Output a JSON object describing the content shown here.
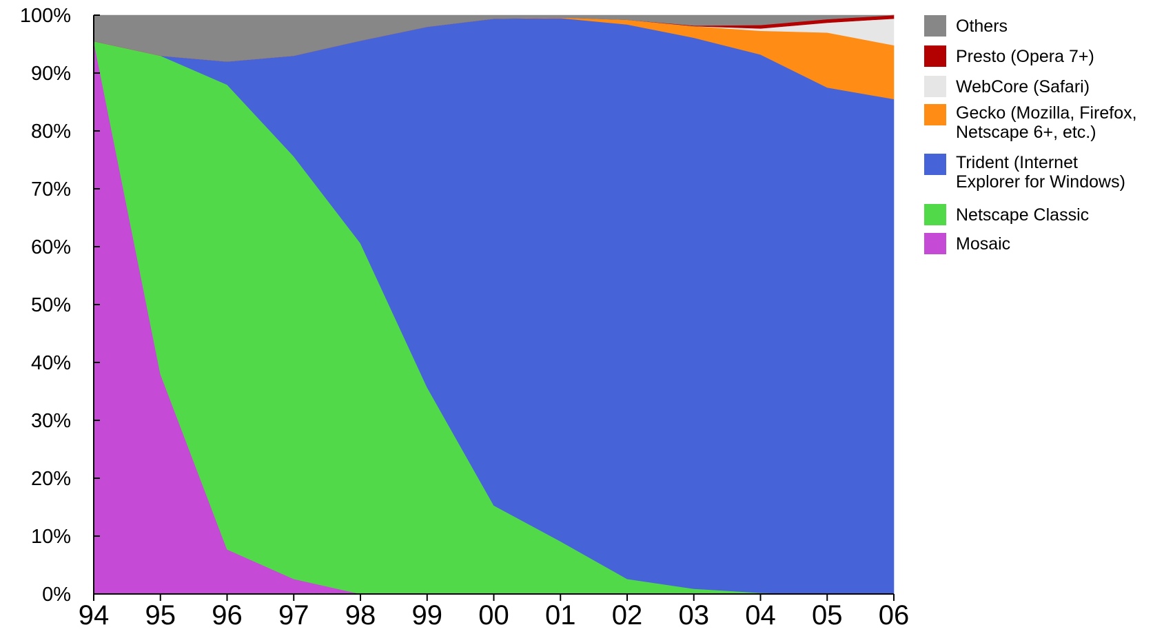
{
  "chart_data": {
    "type": "area",
    "stacked": true,
    "x": [
      "94",
      "95",
      "96",
      "97",
      "98",
      "99",
      "00",
      "01",
      "02",
      "03",
      "04",
      "05",
      "06"
    ],
    "ylim": [
      0,
      100
    ],
    "y_ticks": [
      "0%",
      "10%",
      "20%",
      "30%",
      "40%",
      "50%",
      "60%",
      "70%",
      "80%",
      "90%",
      "100%"
    ],
    "grid": false,
    "legend_position": "right",
    "series": [
      {
        "name": "Mosaic",
        "color": "#c54ad6",
        "values": [
          95.5,
          38.0,
          7.7,
          2.6,
          0.0,
          0.0,
          0.0,
          0.0,
          0.0,
          0.0,
          0.0,
          0.0,
          0.0
        ]
      },
      {
        "name": "Netscape Classic",
        "color": "#52d94a",
        "values": [
          0.0,
          55.0,
          80.3,
          73.0,
          60.6,
          35.7,
          15.3,
          9.1,
          2.6,
          0.9,
          0.2,
          0.0,
          0.0
        ]
      },
      {
        "name": "Trident (Internet Explorer for Windows)",
        "color": "#4664d8",
        "values": [
          0.0,
          0.0,
          4.0,
          17.4,
          35.0,
          62.3,
          84.1,
          90.4,
          95.8,
          95.2,
          93.0,
          87.5,
          85.5
        ]
      },
      {
        "name": "Gecko (Mozilla, Firefox, Netscape 6+, etc.)",
        "color": "#ff8c14",
        "values": [
          0.0,
          0.0,
          0.0,
          0.0,
          0.0,
          0.0,
          0.0,
          0.1,
          0.8,
          2.0,
          4.1,
          9.5,
          9.3
        ]
      },
      {
        "name": "WebCore (Safari)",
        "color": "#e6e6e6",
        "values": [
          0.0,
          0.0,
          0.0,
          0.0,
          0.0,
          0.0,
          0.0,
          0.0,
          0.0,
          0.0,
          0.4,
          1.7,
          4.6
        ]
      },
      {
        "name": "Presto (Opera 7+)",
        "color": "#b30000",
        "values": [
          0.0,
          0.0,
          0.0,
          0.0,
          0.0,
          0.0,
          0.0,
          0.0,
          0.0,
          0.1,
          0.6,
          0.6,
          0.6
        ]
      },
      {
        "name": "Others",
        "color": "#878787",
        "values": [
          4.5,
          7.0,
          8.0,
          7.0,
          4.4,
          2.0,
          0.6,
          0.4,
          0.8,
          1.8,
          1.7,
          0.7,
          0.0
        ]
      }
    ],
    "legend": [
      {
        "series": "Others",
        "lines": [
          "Others"
        ]
      },
      {
        "series": "Presto (Opera 7+)",
        "lines": [
          "Presto (Opera 7+)"
        ]
      },
      {
        "series": "WebCore (Safari)",
        "lines": [
          "WebCore (Safari)"
        ]
      },
      {
        "series": "Gecko (Mozilla, Firefox, Netscape 6+, etc.)",
        "lines": [
          "Gecko (Mozilla, Firefox,",
          "Netscape 6+, etc.)"
        ]
      },
      {
        "series": "Trident (Internet Explorer for Windows)",
        "lines": [
          "Trident (Internet",
          "Explorer for Windows)"
        ]
      },
      {
        "series": "Netscape Classic",
        "lines": [
          "Netscape Classic"
        ]
      },
      {
        "series": "Mosaic",
        "lines": [
          "Mosaic"
        ]
      }
    ]
  }
}
